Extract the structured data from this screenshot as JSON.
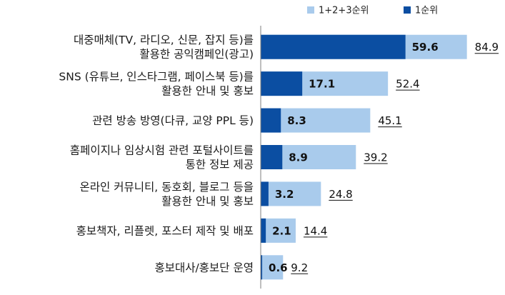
{
  "colors": {
    "series_total": "#a9cbec",
    "series_first": "#0b4ea2",
    "axis": "#7f7f7f"
  },
  "chart_data": {
    "type": "bar",
    "orientation": "horizontal",
    "layout": "overlapped",
    "categories": [
      [
        "대중매체(TV, 라디오, 신문, 잡지 등)를",
        "활용한 공익캠페인(광고)"
      ],
      [
        "SNS (유튜브, 인스타그램, 페이스북 등)를",
        "활용한 안내 및 홍보"
      ],
      [
        "관련 방송 방영(다큐, 교양 PPL 등)"
      ],
      [
        "홈페이지나 임상시험 관련 포털사이트를",
        "통한 정보 제공"
      ],
      [
        "온라인 커뮤니티, 동호회, 블로그 등을",
        "활용한 안내 및 홍보"
      ],
      [
        "홍보책자, 리플렛, 포스터 제작 및 배포"
      ],
      [
        "홍보대사/홍보단 운영"
      ]
    ],
    "series": [
      {
        "name": "1+2+3순위",
        "values": [
          84.9,
          52.4,
          45.1,
          39.2,
          24.8,
          14.4,
          9.2
        ],
        "value_labels": [
          "84.9",
          "52.4",
          "45.1",
          "39.2",
          "24.8",
          "14.4",
          "9.2"
        ]
      },
      {
        "name": "1순위",
        "values": [
          59.6,
          17.1,
          8.3,
          8.9,
          3.2,
          2.1,
          0.6
        ],
        "value_labels": [
          "59.6",
          "17.1",
          "8.3",
          "8.9",
          "3.2",
          "2.1",
          "0.6"
        ]
      }
    ],
    "xlim": [
      0,
      100
    ],
    "legend_position": "top-right",
    "grid": false,
    "title": "",
    "xlabel": "",
    "ylabel": ""
  }
}
